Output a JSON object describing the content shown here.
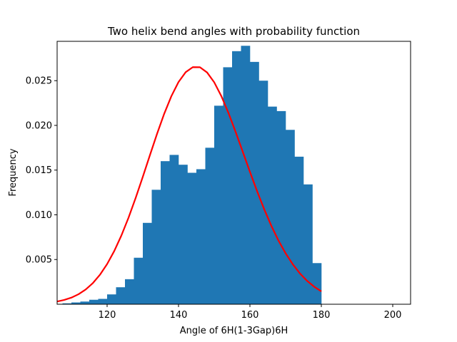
{
  "chart_data": {
    "type": "bar",
    "title": "Two helix bend angles with probability function",
    "xlabel": "Angle of 6H(1-3Gap)6H",
    "ylabel": "Frequency",
    "xlim": [
      106,
      205
    ],
    "ylim": [
      0,
      0.0294
    ],
    "xticks": [
      120,
      140,
      160,
      180,
      200
    ],
    "yticks": [
      0.005,
      0.01,
      0.015,
      0.02,
      0.025
    ],
    "ytick_labels": [
      "0.005",
      "0.010",
      "0.015",
      "0.020",
      "0.025"
    ],
    "grid": false,
    "colors": {
      "bars": "#1f77b4",
      "curve": "#ff0000"
    },
    "histogram": {
      "bin_width": 2.5,
      "bins_start": [
        107.5,
        110.0,
        112.5,
        115.0,
        117.5,
        120.0,
        122.5,
        125.0,
        127.5,
        130.0,
        132.5,
        135.0,
        137.5,
        140.0,
        142.5,
        145.0,
        147.5,
        150.0,
        152.5,
        155.0,
        157.5,
        160.0,
        162.5,
        165.0,
        167.5,
        170.0,
        172.5,
        175.0,
        177.5
      ],
      "values": [
        0.0001,
        0.0002,
        0.0003,
        0.0005,
        0.0006,
        0.0011,
        0.0019,
        0.0028,
        0.0052,
        0.0091,
        0.0128,
        0.016,
        0.0167,
        0.0156,
        0.0147,
        0.0151,
        0.0175,
        0.0222,
        0.0265,
        0.0283,
        0.0289,
        0.0271,
        0.025,
        0.0221,
        0.0216,
        0.0195,
        0.0165,
        0.0134,
        0.0046
      ]
    },
    "series": [
      {
        "x": [
          106,
          108,
          110,
          112,
          114,
          116,
          118,
          120,
          122,
          124,
          126,
          128,
          130,
          132,
          134,
          136,
          138,
          140,
          142,
          144,
          146,
          148,
          150,
          152,
          154,
          156,
          158,
          160,
          162,
          164,
          166,
          168,
          170,
          172,
          174,
          176,
          178,
          180
        ],
        "y": [
          0.0003,
          0.00048,
          0.00074,
          0.00112,
          0.00165,
          0.00236,
          0.0033,
          0.00449,
          0.00595,
          0.00769,
          0.00968,
          0.01189,
          0.01425,
          0.01668,
          0.01907,
          0.02131,
          0.02327,
          0.02485,
          0.02595,
          0.02651,
          0.0265,
          0.02592,
          0.02482,
          0.02327,
          0.02138,
          0.01926,
          0.01704,
          0.01481,
          0.01265,
          0.01062,
          0.00877,
          0.00712,
          0.00569,
          0.00447,
          0.00345,
          0.00262,
          0.00196,
          0.00144
        ]
      }
    ]
  }
}
